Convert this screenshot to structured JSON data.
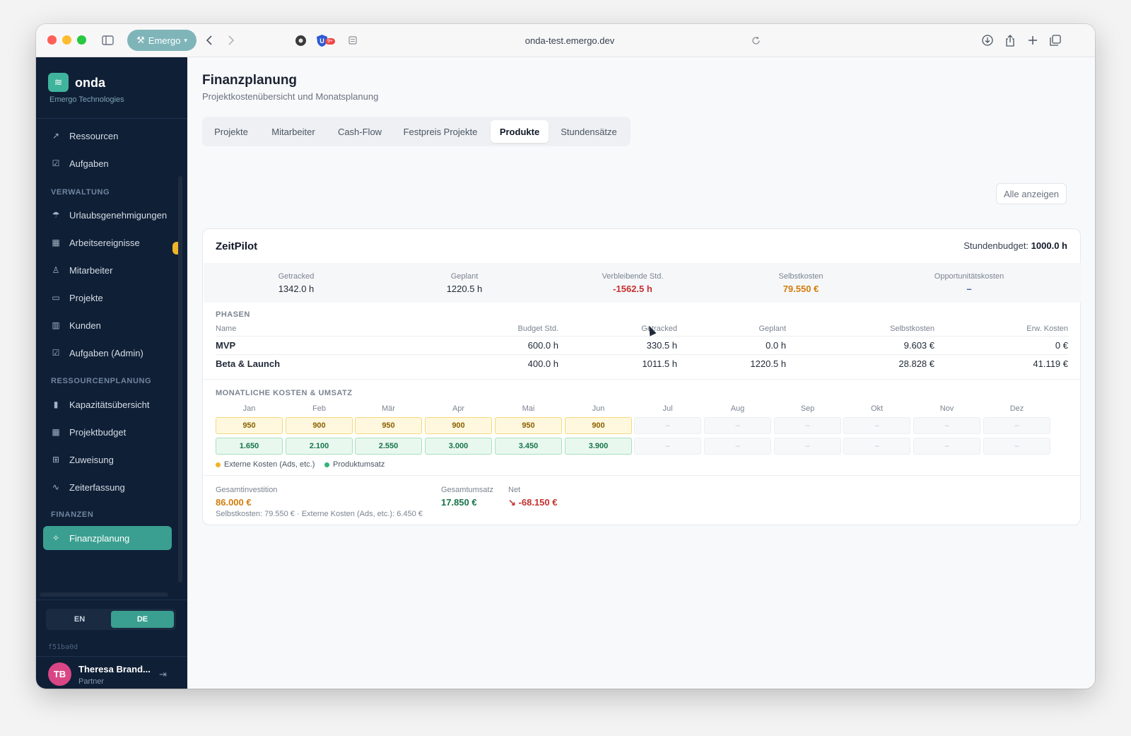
{
  "browser": {
    "profile": "Emergo",
    "url": "onda-test.emergo.dev",
    "extension_badge": "9+"
  },
  "sidebar": {
    "brand": "onda",
    "org": "Emergo Technologies",
    "items_top": [
      "Ressourcen",
      "Aufgaben"
    ],
    "section_verwaltung": "VERWALTUNG",
    "items_verwaltung": [
      "Urlaubsgenehmigungen",
      "Arbeitsereignisse",
      "Mitarbeiter",
      "Projekte",
      "Kunden",
      "Aufgaben (Admin)"
    ],
    "section_ressourcen": "RESSOURCENPLANUNG",
    "items_ressourcen": [
      "Kapazitätsübersicht",
      "Projektbudget",
      "Zuweisung",
      "Zeiterfassung"
    ],
    "section_finanzen": "FINANZEN",
    "items_finanzen": [
      "Finanzplanung"
    ],
    "lang_en": "EN",
    "lang_de": "DE",
    "version": "f51ba0d",
    "user_initials": "TB",
    "user_name": "Theresa Brand...",
    "user_role": "Partner"
  },
  "header": {
    "title": "Finanzplanung",
    "subtitle": "Projektkostenübersicht und Monatsplanung"
  },
  "tabs": [
    "Projekte",
    "Mitarbeiter",
    "Cash-Flow",
    "Festpreis Projekte",
    "Produkte",
    "Stundensätze"
  ],
  "active_tab": "Produkte",
  "alle_anzeigen": "Alle anzeigen",
  "product": {
    "name": "ZeitPilot",
    "budget_label": "Stundenbudget:",
    "budget_value": "1000.0 h",
    "stats": [
      {
        "label": "Getracked",
        "value": "1342.0 h"
      },
      {
        "label": "Geplant",
        "value": "1220.5 h"
      },
      {
        "label": "Verbleibende Std.",
        "value": "-1562.5 h"
      },
      {
        "label": "Selbstkosten",
        "value": "79.550 €"
      },
      {
        "label": "Opportunitätskosten",
        "value": "–"
      }
    ],
    "phases_title": "PHASEN",
    "phase_headers": [
      "Name",
      "Budget Std.",
      "Getracked",
      "Geplant",
      "Selbstkosten",
      "Erw. Kosten"
    ],
    "phases": [
      {
        "name": "MVP",
        "budget": "600.0 h",
        "tracked": "330.5 h",
        "planned": "0.0 h",
        "cost": "9.603 €",
        "exp": "0 €"
      },
      {
        "name": "Beta & Launch",
        "budget": "400.0 h",
        "tracked": "1011.5 h",
        "planned": "1220.5 h",
        "cost": "28.828 €",
        "exp": "41.119 €"
      }
    ],
    "monthly_title": "MONATLICHE KOSTEN & UMSATZ",
    "months": [
      "Jan",
      "Feb",
      "Mär",
      "Apr",
      "Mai",
      "Jun",
      "Jul",
      "Aug",
      "Sep",
      "Okt",
      "Nov",
      "Dez"
    ],
    "costs": [
      "950",
      "900",
      "950",
      "900",
      "950",
      "900",
      "–",
      "–",
      "–",
      "–",
      "–",
      "–"
    ],
    "revenue": [
      "1.650",
      "2.100",
      "2.550",
      "3.000",
      "3.450",
      "3.900",
      "–",
      "–",
      "–",
      "–",
      "–",
      "–"
    ],
    "legend_cost": "Externe Kosten (Ads, etc.)",
    "legend_revenue": "Produktumsatz",
    "total_invest_label": "Gesamtinvestition",
    "total_invest": "86.000 €",
    "total_revenue_label": "Gesamtumsatz",
    "total_revenue": "17.850 €",
    "net_label": "Net",
    "net_value": "-68.150 €",
    "footnote": "Selbstkosten: 79.550 € · Externe Kosten (Ads, etc.): 6.450 €"
  },
  "colors": {
    "sidebar_bg": "#0f1f36",
    "accent": "#3a9f90",
    "negative": "#c53030",
    "cost_orange": "#d27d0c",
    "revenue_green": "#18744a"
  }
}
